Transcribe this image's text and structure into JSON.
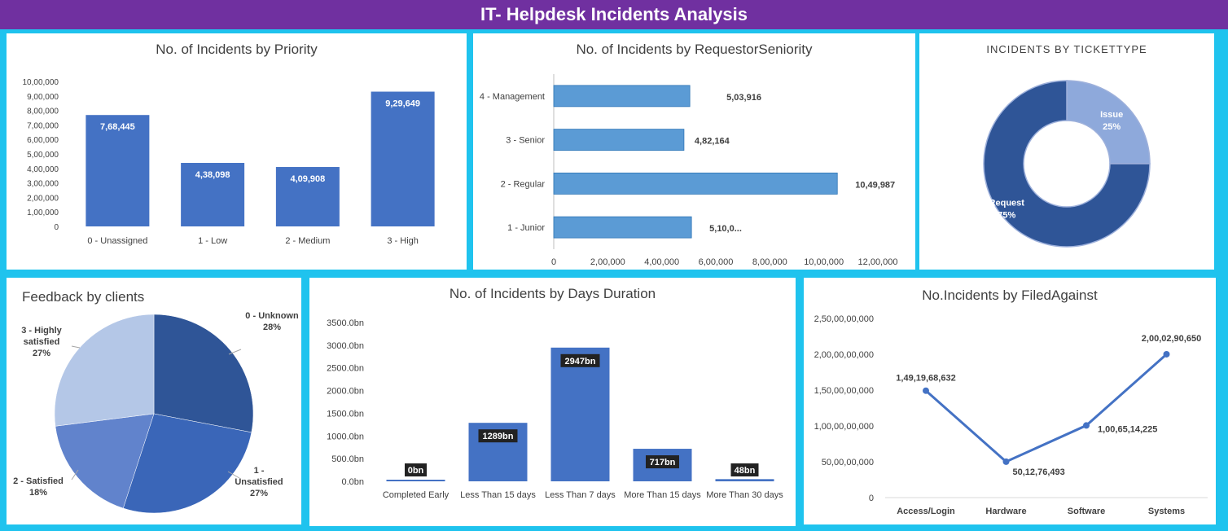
{
  "header": {
    "title": "IT- Helpdesk Incidents Analysis"
  },
  "colors": {
    "header_bg": "#7030a0",
    "page_bg": "#1fc3ee",
    "bar": "#4472c4",
    "bar_dark": "#2f5597",
    "bar_light": "#5b9bd5"
  },
  "chart_data": [
    {
      "id": "priority",
      "type": "bar",
      "title": "No. of Incidents by Priority",
      "categories": [
        "0 - Unassigned",
        "1 - Low",
        "2 - Medium",
        "3 - High"
      ],
      "values": [
        768445,
        438098,
        409908,
        929649
      ],
      "data_labels": [
        "7,68,445",
        "4,38,098",
        "4,09,908",
        "9,29,649"
      ],
      "ylim": [
        0,
        1000000
      ],
      "yticks": [
        "0",
        "1,00,000",
        "2,00,000",
        "3,00,000",
        "4,00,000",
        "5,00,000",
        "6,00,000",
        "7,00,000",
        "8,00,000",
        "9,00,000",
        "10,00,000"
      ]
    },
    {
      "id": "seniority",
      "type": "bar",
      "orientation": "horizontal",
      "title": "No. of Incidents by RequestorSeniority",
      "categories": [
        "4 - Management",
        "3 - Senior",
        "2 - Regular",
        "1 - Junior"
      ],
      "values": [
        503916,
        482164,
        1049987,
        510000
      ],
      "data_labels": [
        "5,03,916",
        "4,82,164",
        "10,49,987",
        "5,10,0..."
      ],
      "xlim": [
        0,
        1200000
      ],
      "xticks": [
        "0",
        "2,00,000",
        "4,00,000",
        "6,00,000",
        "8,00,000",
        "10,00,000",
        "12,00,000"
      ]
    },
    {
      "id": "tickettype",
      "type": "pie",
      "donut": true,
      "title": "INCIDENTS BY TICKETTYPE",
      "slices": [
        {
          "name": "Issue",
          "value": 25,
          "label": "25%",
          "color": "#8ea9db"
        },
        {
          "name": "Request",
          "value": 75,
          "label": "75%",
          "color": "#2f5597"
        }
      ]
    },
    {
      "id": "feedback",
      "type": "pie",
      "title": "Feedback by clients",
      "slices": [
        {
          "name": "0 - Unknown",
          "value": 28,
          "label": "28%",
          "color": "#2f5597"
        },
        {
          "name": "1 - Unsatisfied",
          "value": 27,
          "label": "27%",
          "color": "#3a66b8"
        },
        {
          "name": "2 - Satisfied",
          "value": 18,
          "label": "18%",
          "color": "#6183cc"
        },
        {
          "name": "3 - Highly satisfied",
          "value": 27,
          "label": "27%",
          "color": "#b4c7e7"
        }
      ]
    },
    {
      "id": "duration",
      "type": "bar",
      "title": "No. of Incidents by Days Duration",
      "categories": [
        "Completed Early",
        "Less Than 15 days",
        "Less Than 7 days",
        "More Than 15 days",
        "More Than 30 days"
      ],
      "values": [
        0,
        1289,
        2947,
        717,
        48
      ],
      "data_labels": [
        "0bn",
        "1289bn",
        "2947bn",
        "717bn",
        "48bn"
      ],
      "ylim": [
        0,
        3500
      ],
      "yticks": [
        "0.0bn",
        "500.0bn",
        "1000.0bn",
        "1500.0bn",
        "2000.0bn",
        "2500.0bn",
        "3000.0bn",
        "3500.0bn"
      ]
    },
    {
      "id": "filedagainst",
      "type": "line",
      "title": "No.Incidents by FiledAgainst",
      "categories": [
        "Access/Login",
        "Hardware",
        "Software",
        "Systems"
      ],
      "values": [
        1491968632,
        501276493,
        1006514225,
        2000290650
      ],
      "data_labels": [
        "1,49,19,68,632",
        "50,12,76,493",
        "1,00,65,14,225",
        "2,00,02,90,650"
      ],
      "ylim": [
        0,
        2500000000
      ],
      "yticks": [
        "0",
        "50,00,00,000",
        "1,00,00,00,000",
        "1,50,00,00,000",
        "2,00,00,00,000",
        "2,50,00,00,000"
      ]
    }
  ]
}
